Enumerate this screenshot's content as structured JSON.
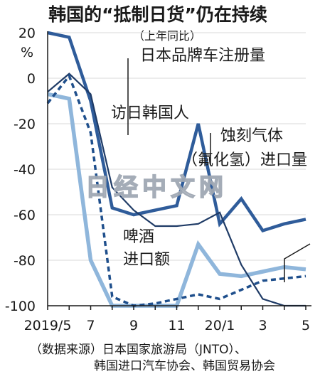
{
  "chart_data": {
    "type": "line",
    "title": "韩国的“抵制日货”仍在持续",
    "subtitle": "（上年同比）",
    "y_unit": "%",
    "ylim": [
      -100,
      20
    ],
    "y_ticks": [
      20,
      0,
      -20,
      -40,
      -60,
      -80,
      -100
    ],
    "y_tick_labels": [
      "20",
      "0",
      "-20",
      "-40",
      "-60",
      "-80",
      "-100"
    ],
    "x_ticks": [
      {
        "index": 0,
        "label": "2019/5"
      },
      {
        "index": 2,
        "label": "7"
      },
      {
        "index": 4,
        "label": "9"
      },
      {
        "index": 6,
        "label": "11"
      },
      {
        "index": 8,
        "label": "20/1"
      },
      {
        "index": 10,
        "label": "3"
      },
      {
        "index": 12,
        "label": "5"
      }
    ],
    "series": [
      {
        "name": "日本品牌车注册量",
        "style": "solid-thick-dark",
        "color": "#2f5c9a",
        "points": [
          [
            0,
            20
          ],
          [
            1,
            18
          ],
          [
            2,
            -10
          ],
          [
            3,
            -57
          ],
          [
            4,
            -60
          ],
          [
            5,
            -58
          ],
          [
            6,
            -56
          ],
          [
            7,
            -20
          ],
          [
            8,
            -64
          ],
          [
            9,
            -53
          ],
          [
            10,
            -67
          ],
          [
            11,
            -64
          ],
          [
            12,
            -62
          ]
        ]
      },
      {
        "name": "访日韩国人",
        "style": "solid-thin-navy",
        "color": "#1f3b66",
        "points": [
          [
            0,
            -6
          ],
          [
            1,
            2
          ],
          [
            2,
            -7
          ],
          [
            3,
            -48
          ],
          [
            4,
            -58
          ],
          [
            5,
            -65
          ],
          [
            6,
            -65
          ],
          [
            7,
            -64
          ],
          [
            8,
            -59
          ],
          [
            9,
            -82
          ],
          [
            10,
            -97
          ],
          [
            11,
            -100
          ],
          [
            12,
            -100
          ]
        ]
      },
      {
        "name": "氟化氢进口量",
        "label_lines": [
          "蚀刻气体",
          "（氟化氢）进口量"
        ],
        "style": "dashed-dark",
        "color": "#1f4f8c",
        "points": [
          [
            0,
            -11
          ],
          [
            1,
            1
          ],
          [
            2,
            -24
          ],
          [
            3,
            -96
          ],
          [
            4,
            -100
          ],
          [
            5,
            -99
          ],
          [
            6,
            -97
          ],
          [
            7,
            -95
          ],
          [
            8,
            -97
          ],
          [
            9,
            -93
          ],
          [
            10,
            -89
          ],
          [
            11,
            -88
          ],
          [
            12,
            -87
          ]
        ]
      },
      {
        "name": "啤酒进口额",
        "label_lines": [
          "啤酒",
          "进口额"
        ],
        "style": "solid-thick-light",
        "color": "#8fb6db",
        "points": [
          [
            0,
            -7
          ],
          [
            1,
            -9
          ],
          [
            2,
            -80
          ],
          [
            3,
            -100
          ],
          [
            4,
            -100
          ],
          [
            5,
            -100
          ],
          [
            6,
            -100
          ],
          [
            7,
            -73
          ],
          [
            8,
            -86
          ],
          [
            9,
            -87
          ],
          [
            10,
            -85
          ],
          [
            11,
            -83
          ],
          [
            12,
            -84
          ]
        ]
      }
    ],
    "watermark": "日经中文网",
    "source_lines": [
      "（数据来源）日本国家旅游局（JNTO）、",
      "韩国进口汽车协会、韩国贸易协会"
    ]
  }
}
